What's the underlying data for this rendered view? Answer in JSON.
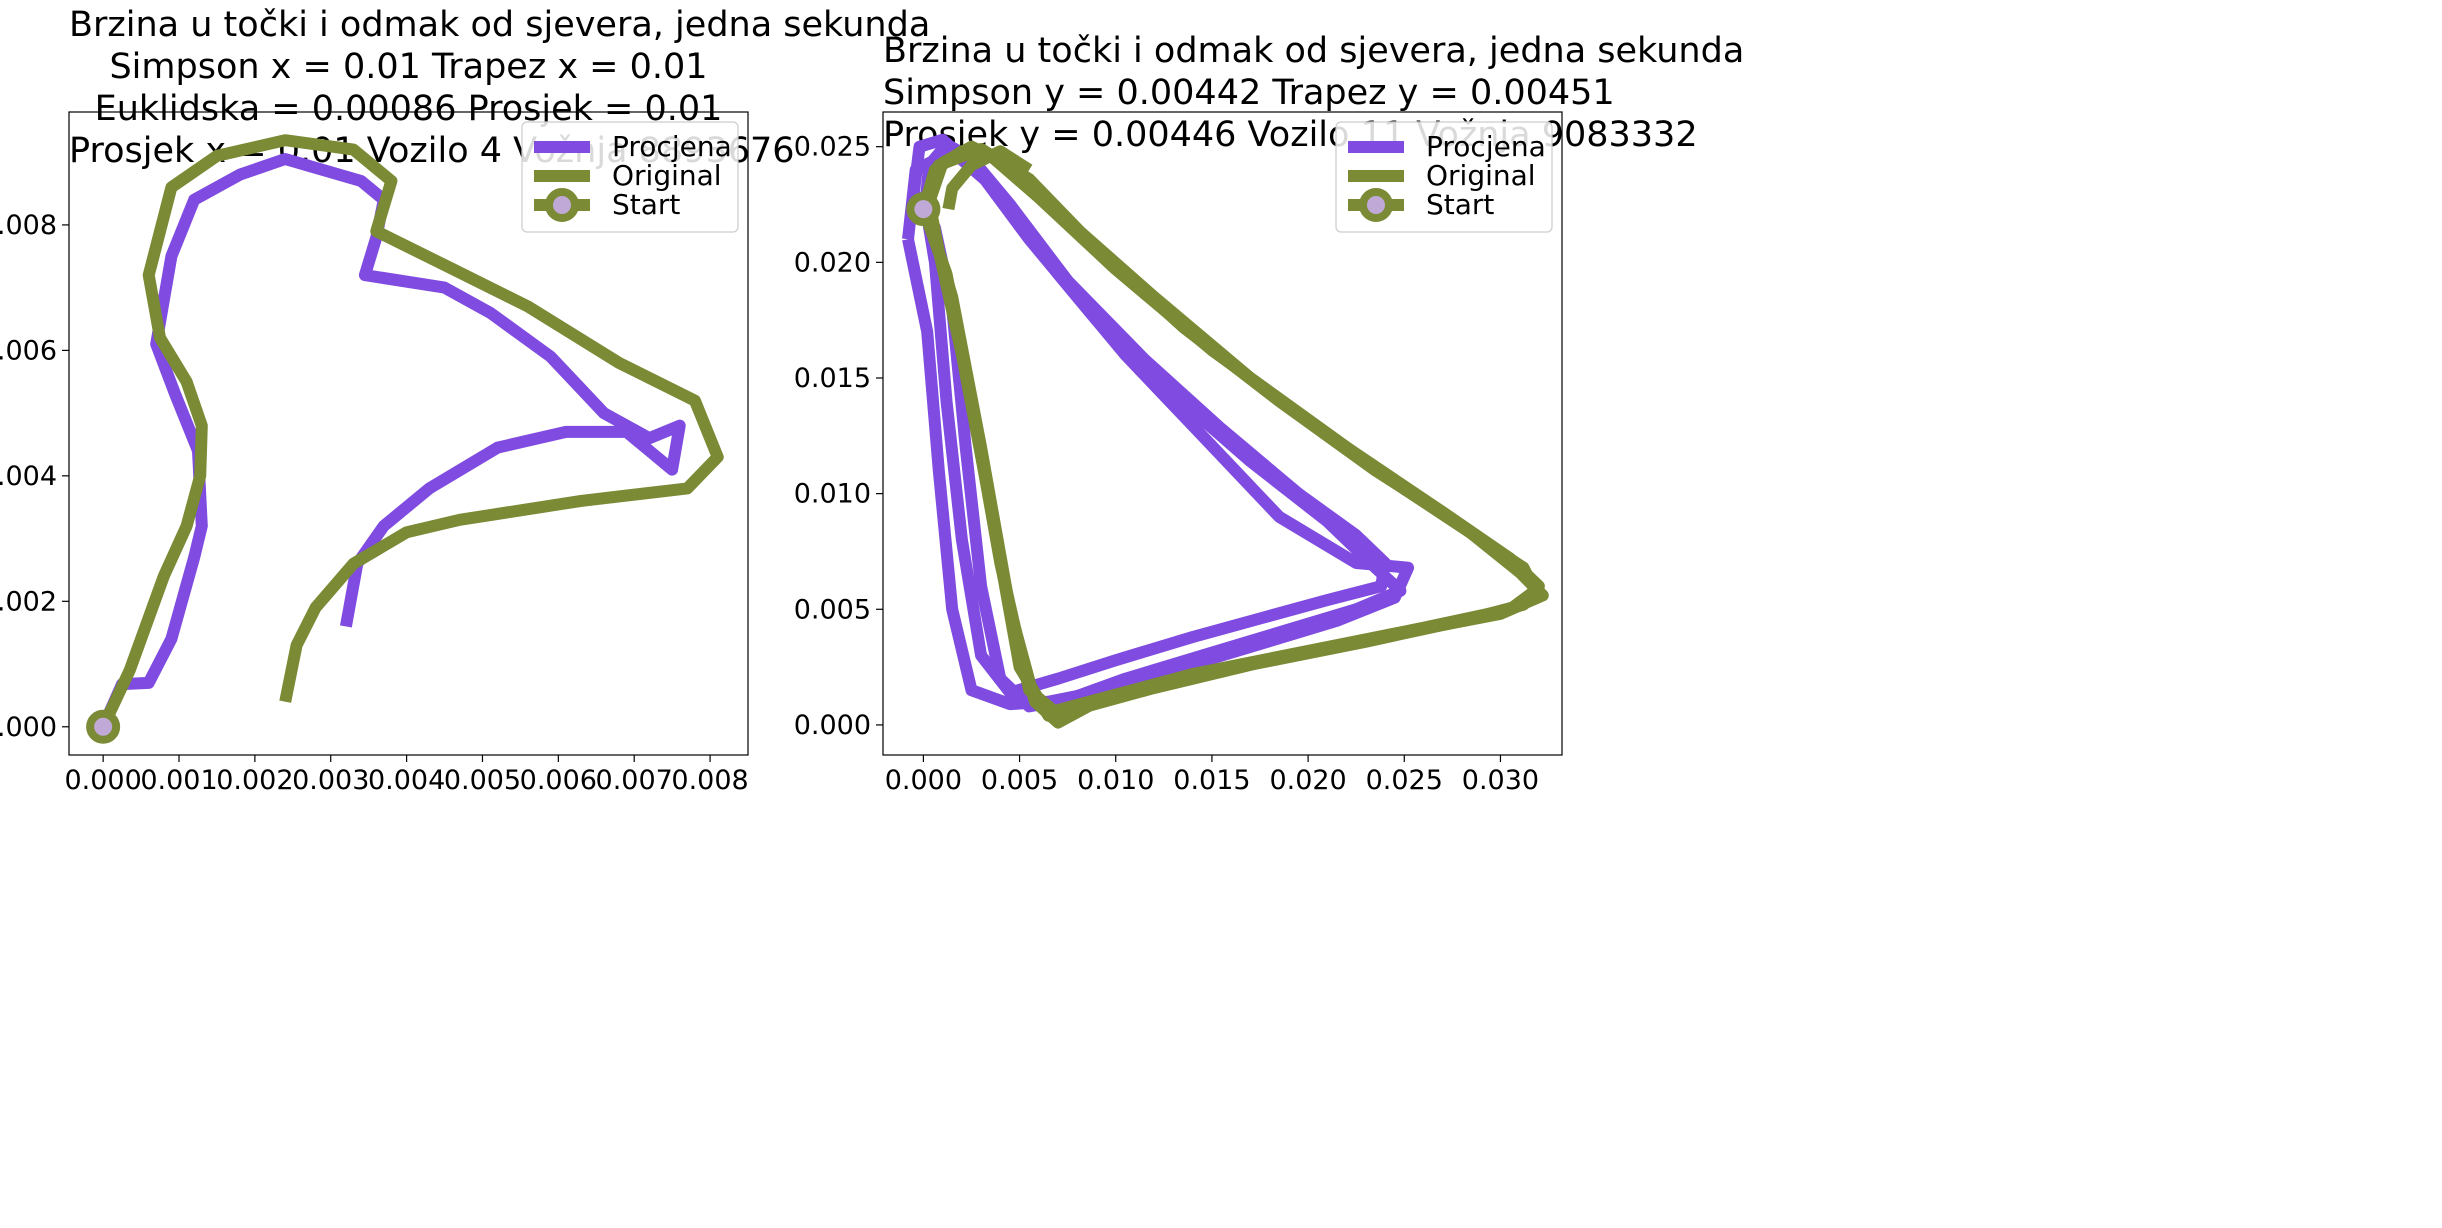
{
  "chart_data": [
    {
      "type": "line",
      "title": [
        "Brzina u točki i odmak od sjevera, jedna sekunda",
        "Simpson x = 0.01 Trapez x = 0.01",
        "Euklidska = 0.00086 Prosjek = 0.01",
        "Prosjek x = 0.01 Vozilo 4 Vožnja 8893676"
      ],
      "xlabel": "",
      "ylabel": "",
      "xlim": [
        -0.00045,
        0.0085
      ],
      "ylim": [
        -0.00045,
        0.0098
      ],
      "xticks": [
        "0.000",
        "0.001",
        "0.002",
        "0.003",
        "0.004",
        "0.005",
        "0.006",
        "0.007",
        "0.008"
      ],
      "xtick_values": [
        0,
        0.001,
        0.002,
        0.003,
        0.004,
        0.005,
        0.006,
        0.007,
        0.008
      ],
      "yticks": [
        "0.000",
        "0.002",
        "0.004",
        "0.006",
        "0.008"
      ],
      "ytick_values": [
        0,
        0.002,
        0.004,
        0.006,
        0.008
      ],
      "legend": {
        "position": "top-right",
        "entries": [
          "Procjena",
          "Original",
          "Start"
        ]
      },
      "colors": {
        "Procjena": "#7f4be0",
        "Original": "#7a8a35",
        "start_marker_fill": "#c0a9d6"
      },
      "series": [
        {
          "name": "Procjena",
          "points": [
            [
              0,
              0
            ],
            [
              0.00025,
              0.00068
            ],
            [
              0.0006,
              0.0007
            ],
            [
              0.0009,
              0.0014
            ],
            [
              0.0012,
              0.0027
            ],
            [
              0.0013,
              0.0032
            ],
            [
              0.00125,
              0.0044
            ],
            [
              0.00095,
              0.0053
            ],
            [
              0.0007,
              0.0061
            ],
            [
              0.0009,
              0.0075
            ],
            [
              0.0012,
              0.0084
            ],
            [
              0.0018,
              0.0088
            ],
            [
              0.0024,
              0.00905
            ],
            [
              0.0034,
              0.0087
            ],
            [
              0.0037,
              0.0084
            ],
            [
              0.0036,
              0.0078
            ],
            [
              0.00345,
              0.0072
            ],
            [
              0.0045,
              0.007
            ],
            [
              0.0051,
              0.0066
            ],
            [
              0.0059,
              0.0059
            ],
            [
              0.0066,
              0.005
            ],
            [
              0.0072,
              0.0046
            ],
            [
              0.0076,
              0.0048
            ],
            [
              0.0075,
              0.0041
            ],
            [
              0.0069,
              0.0047
            ],
            [
              0.0061,
              0.0047
            ],
            [
              0.0052,
              0.00445
            ],
            [
              0.0043,
              0.0038
            ],
            [
              0.0037,
              0.0032
            ],
            [
              0.00335,
              0.0026
            ],
            [
              0.0032,
              0.0016
            ]
          ]
        },
        {
          "name": "Original",
          "points": [
            [
              0,
              0
            ],
            [
              0.00035,
              0.0009
            ],
            [
              0.0008,
              0.0024
            ],
            [
              0.0011,
              0.0032
            ],
            [
              0.00128,
              0.004
            ],
            [
              0.0013,
              0.0048
            ],
            [
              0.0011,
              0.0055
            ],
            [
              0.00075,
              0.0062
            ],
            [
              0.0006,
              0.0072
            ],
            [
              0.0009,
              0.0086
            ],
            [
              0.0015,
              0.0091
            ],
            [
              0.0024,
              0.00935
            ],
            [
              0.0033,
              0.0092
            ],
            [
              0.0038,
              0.0087
            ],
            [
              0.0036,
              0.0079
            ],
            [
              0.0046,
              0.0073
            ],
            [
              0.0056,
              0.0067
            ],
            [
              0.0068,
              0.0058
            ],
            [
              0.0078,
              0.0052
            ],
            [
              0.0081,
              0.0043
            ],
            [
              0.0077,
              0.0038
            ],
            [
              0.0063,
              0.0036
            ],
            [
              0.0047,
              0.0033
            ],
            [
              0.004,
              0.0031
            ],
            [
              0.0033,
              0.0026
            ],
            [
              0.0028,
              0.0019
            ],
            [
              0.00255,
              0.0013
            ],
            [
              0.0024,
              0.0004
            ]
          ]
        }
      ],
      "start": [
        0,
        0
      ]
    },
    {
      "type": "line",
      "title": [
        "Brzina u točki i odmak od sjevera, jedna sekunda",
        "Simpson y = 0.00442 Trapez y = 0.00451",
        "Prosjek y = 0.00446 Vozilo 11 Vožnja 9083332"
      ],
      "xlabel": "",
      "ylabel": "",
      "xlim": [
        -0.0021,
        0.0332
      ],
      "ylim": [
        -0.0013,
        0.0265
      ],
      "xticks": [
        "0.000",
        "0.005",
        "0.010",
        "0.015",
        "0.020",
        "0.025",
        "0.030"
      ],
      "xtick_values": [
        0,
        0.005,
        0.01,
        0.015,
        0.02,
        0.025,
        0.03
      ],
      "yticks": [
        "0.000",
        "0.005",
        "0.010",
        "0.015",
        "0.020",
        "0.025"
      ],
      "ytick_values": [
        0,
        0.005,
        0.01,
        0.015,
        0.02,
        0.025
      ],
      "legend": {
        "position": "top-right",
        "entries": [
          "Procjena",
          "Original",
          "Start"
        ]
      },
      "colors": {
        "Procjena": "#7f4be0",
        "Original": "#7a8a35",
        "start_marker_fill": "#c0a9d6"
      },
      "series": [
        {
          "name": "Procjena",
          "loops": [
            [
              [
                0.0001,
                0.0225
              ],
              [
                0.0003,
                0.0242
              ],
              [
                0.0012,
                0.0251
              ],
              [
                0.0025,
                0.0245
              ],
              [
                0.0045,
                0.0225
              ],
              [
                0.0075,
                0.0192
              ],
              [
                0.0115,
                0.0158
              ],
              [
                0.0155,
                0.0128
              ],
              [
                0.0195,
                0.01
              ],
              [
                0.0225,
                0.0082
              ],
              [
                0.024,
                0.007
              ],
              [
                0.0238,
                0.006
              ],
              [
                0.021,
                0.0054
              ],
              [
                0.0175,
                0.0046
              ],
              [
                0.014,
                0.0038
              ],
              [
                0.01,
                0.0028
              ],
              [
                0.007,
                0.002
              ],
              [
                0.0045,
                0.0014
              ],
              [
                0.003,
                0.003
              ],
              [
                0.002,
                0.008
              ],
              [
                0.0012,
                0.014
              ],
              [
                0.0006,
                0.02
              ],
              [
                0.0001,
                0.0225
              ]
            ],
            [
              [
                -0.0005,
                0.023
              ],
              [
                -0.0002,
                0.025
              ],
              [
                0.001,
                0.0253
              ],
              [
                0.003,
                0.0238
              ],
              [
                0.0055,
                0.021
              ],
              [
                0.009,
                0.0175
              ],
              [
                0.013,
                0.0143
              ],
              [
                0.017,
                0.0114
              ],
              [
                0.021,
                0.0088
              ],
              [
                0.0235,
                0.0068
              ],
              [
                0.0248,
                0.0058
              ],
              [
                0.0225,
                0.005
              ],
              [
                0.0185,
                0.004
              ],
              [
                0.0145,
                0.003
              ],
              [
                0.0105,
                0.002
              ],
              [
                0.0075,
                0.0011
              ],
              [
                0.0055,
                0.0008
              ],
              [
                0.004,
                0.002
              ],
              [
                0.003,
                0.006
              ],
              [
                0.0022,
                0.012
              ],
              [
                0.0015,
                0.018
              ],
              [
                0.0006,
                0.0215
              ],
              [
                -0.0005,
                0.023
              ]
            ],
            [
              [
                -0.0008,
                0.021
              ],
              [
                -0.0004,
                0.024
              ],
              [
                0.0015,
                0.0248
              ],
              [
                0.004,
                0.023
              ],
              [
                0.007,
                0.0195
              ],
              [
                0.0105,
                0.016
              ],
              [
                0.0145,
                0.0125
              ],
              [
                0.0185,
                0.009
              ],
              [
                0.0225,
                0.007
              ],
              [
                0.0252,
                0.0068
              ],
              [
                0.0245,
                0.0055
              ],
              [
                0.0215,
                0.0045
              ],
              [
                0.0175,
                0.0035
              ],
              [
                0.0135,
                0.0025
              ],
              [
                0.0095,
                0.0015
              ],
              [
                0.0065,
                0.001
              ],
              [
                0.0045,
                0.0009
              ],
              [
                0.0025,
                0.0015
              ],
              [
                0.0015,
                0.005
              ],
              [
                0.0008,
                0.011
              ],
              [
                0.0002,
                0.017
              ],
              [
                -0.0008,
                0.021
              ]
            ]
          ]
        },
        {
          "name": "Original",
          "loops": [
            [
              [
                0,
                0.0223
              ],
              [
                0.0006,
                0.024
              ],
              [
                0.002,
                0.0248
              ],
              [
                0.0035,
                0.0246
              ],
              [
                0.006,
                0.0228
              ],
              [
                0.01,
                0.0197
              ],
              [
                0.015,
                0.0162
              ],
              [
                0.02,
                0.0132
              ],
              [
                0.025,
                0.0102
              ],
              [
                0.029,
                0.008
              ],
              [
                0.0312,
                0.0068
              ],
              [
                0.0318,
                0.0058
              ],
              [
                0.0305,
                0.005
              ],
              [
                0.026,
                0.0042
              ],
              [
                0.02,
                0.0032
              ],
              [
                0.014,
                0.0022
              ],
              [
                0.0095,
                0.0012
              ],
              [
                0.0068,
                0.0006
              ],
              [
                0.0055,
                0.0015
              ],
              [
                0.004,
                0.007
              ],
              [
                0.0025,
                0.014
              ],
              [
                0.0012,
                0.0195
              ],
              [
                0,
                0.0223
              ]
            ],
            [
              [
                0.0003,
                0.0226
              ],
              [
                0.001,
                0.0243
              ],
              [
                0.0025,
                0.025
              ],
              [
                0.0045,
                0.0242
              ],
              [
                0.0075,
                0.0218
              ],
              [
                0.012,
                0.0185
              ],
              [
                0.017,
                0.015
              ],
              [
                0.022,
                0.012
              ],
              [
                0.027,
                0.0092
              ],
              [
                0.0305,
                0.0072
              ],
              [
                0.032,
                0.006
              ],
              [
                0.0312,
                0.0052
              ],
              [
                0.028,
                0.0045
              ],
              [
                0.023,
                0.0036
              ],
              [
                0.017,
                0.0026
              ],
              [
                0.012,
                0.0016
              ],
              [
                0.0085,
                0.0008
              ],
              [
                0.0065,
                0.0004
              ],
              [
                0.005,
                0.0025
              ],
              [
                0.0036,
                0.009
              ],
              [
                0.002,
                0.016
              ],
              [
                0.0008,
                0.0205
              ],
              [
                0.0003,
                0.0226
              ]
            ],
            [
              [
                0.0001,
                0.0224
              ],
              [
                0.0008,
                0.0242
              ],
              [
                0.003,
                0.0249
              ],
              [
                0.0055,
                0.0236
              ],
              [
                0.009,
                0.0206
              ],
              [
                0.0135,
                0.0172
              ],
              [
                0.0185,
                0.014
              ],
              [
                0.0235,
                0.011
              ],
              [
                0.028,
                0.0086
              ],
              [
                0.031,
                0.0066
              ],
              [
                0.0322,
                0.0056
              ],
              [
                0.03,
                0.0048
              ],
              [
                0.025,
                0.004
              ],
              [
                0.019,
                0.003
              ],
              [
                0.013,
                0.0018
              ],
              [
                0.009,
                0.001
              ],
              [
                0.007,
                0.0001
              ],
              [
                0.0058,
                0.001
              ],
              [
                0.0045,
                0.005
              ],
              [
                0.003,
                0.012
              ],
              [
                0.0015,
                0.0185
              ],
              [
                0.0001,
                0.0224
              ]
            ]
          ],
          "tail": [
            [
              0.0013,
              0.0223
            ],
            [
              0.0015,
              0.0232
            ],
            [
              0.0025,
              0.0242
            ],
            [
              0.004,
              0.0248
            ],
            [
              0.0055,
              0.024
            ]
          ]
        }
      ],
      "start": [
        0,
        0.0223
      ]
    }
  ]
}
